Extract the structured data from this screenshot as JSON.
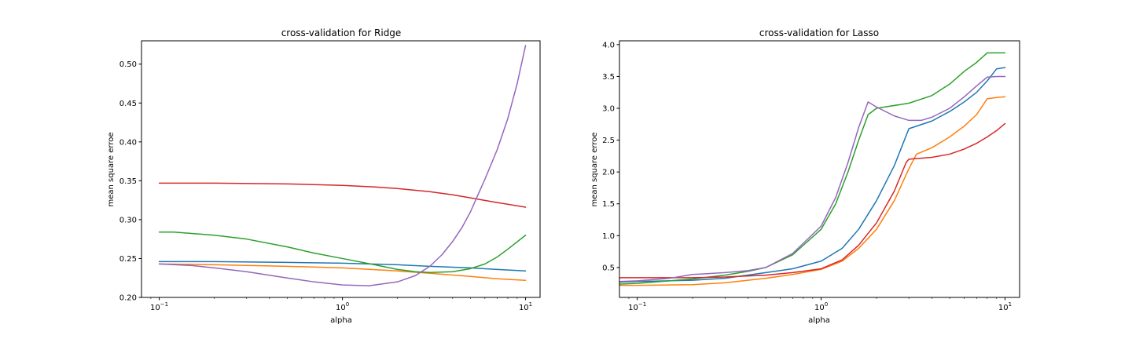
{
  "chart_data": [
    {
      "type": "line",
      "title": "cross-validation for Ridge",
      "xlabel": "alpha",
      "ylabel": "mean square erroe",
      "xscale": "log",
      "xlim": [
        0.08,
        12
      ],
      "ylim": [
        0.2,
        0.53
      ],
      "xticks": [
        {
          "value": 0.1,
          "base": "10",
          "exp": "−1"
        },
        {
          "value": 1,
          "base": "10",
          "exp": "0"
        },
        {
          "value": 10,
          "base": "10",
          "exp": "1"
        }
      ],
      "yticks": [
        {
          "value": 0.2,
          "label": "0.20"
        },
        {
          "value": 0.25,
          "label": "0.25"
        },
        {
          "value": 0.3,
          "label": "0.30"
        },
        {
          "value": 0.35,
          "label": "0.35"
        },
        {
          "value": 0.4,
          "label": "0.40"
        },
        {
          "value": 0.45,
          "label": "0.45"
        },
        {
          "value": 0.5,
          "label": "0.50"
        }
      ],
      "grid": false,
      "series": [
        {
          "color": "#1f77b4",
          "x": [
            0.1,
            0.2,
            0.5,
            1,
            2,
            3,
            5,
            7,
            10
          ],
          "y": [
            0.246,
            0.246,
            0.245,
            0.244,
            0.242,
            0.24,
            0.238,
            0.236,
            0.234
          ]
        },
        {
          "color": "#ff7f0e",
          "x": [
            0.1,
            0.2,
            0.5,
            1,
            2,
            3,
            5,
            7,
            10
          ],
          "y": [
            0.243,
            0.242,
            0.24,
            0.238,
            0.234,
            0.231,
            0.227,
            0.224,
            0.222
          ]
        },
        {
          "color": "#2ca02c",
          "x": [
            0.1,
            0.12,
            0.2,
            0.3,
            0.5,
            0.7,
            1,
            1.5,
            2,
            2.5,
            3,
            4,
            5,
            6,
            7,
            8,
            10
          ],
          "y": [
            0.284,
            0.284,
            0.28,
            0.275,
            0.265,
            0.257,
            0.25,
            0.242,
            0.236,
            0.233,
            0.232,
            0.233,
            0.237,
            0.243,
            0.252,
            0.262,
            0.28
          ]
        },
        {
          "color": "#d62728",
          "x": [
            0.1,
            0.2,
            0.5,
            1,
            1.5,
            2,
            3,
            4,
            5,
            7,
            10
          ],
          "y": [
            0.347,
            0.347,
            0.346,
            0.344,
            0.342,
            0.34,
            0.336,
            0.332,
            0.328,
            0.322,
            0.316
          ]
        },
        {
          "color": "#9467bd",
          "x": [
            0.1,
            0.15,
            0.2,
            0.3,
            0.5,
            0.7,
            1,
            1.4,
            2,
            2.5,
            3,
            3.5,
            4,
            4.5,
            5,
            5.5,
            6,
            7,
            8,
            9,
            10
          ],
          "y": [
            0.243,
            0.241,
            0.238,
            0.233,
            0.225,
            0.22,
            0.216,
            0.215,
            0.22,
            0.228,
            0.24,
            0.255,
            0.272,
            0.29,
            0.31,
            0.332,
            0.352,
            0.39,
            0.43,
            0.475,
            0.524
          ]
        }
      ]
    },
    {
      "type": "line",
      "title": "cross-validation for Lasso",
      "xlabel": "alpha",
      "ylabel": "mean square erroe",
      "xscale": "log",
      "xlim": [
        0.08,
        12
      ],
      "ylim": [
        0.03,
        4.06
      ],
      "xticks": [
        {
          "value": 0.1,
          "base": "10",
          "exp": "−1"
        },
        {
          "value": 1,
          "base": "10",
          "exp": "0"
        },
        {
          "value": 10,
          "base": "10",
          "exp": "1"
        }
      ],
      "yticks": [
        {
          "value": 0.5,
          "label": "0.5"
        },
        {
          "value": 1.0,
          "label": "1.0"
        },
        {
          "value": 1.5,
          "label": "1.5"
        },
        {
          "value": 2.0,
          "label": "2.0"
        },
        {
          "value": 2.5,
          "label": "2.5"
        },
        {
          "value": 3.0,
          "label": "3.0"
        },
        {
          "value": 3.5,
          "label": "3.5"
        },
        {
          "value": 4.0,
          "label": "4.0"
        }
      ],
      "grid": false,
      "series": [
        {
          "color": "#1f77b4",
          "x": [
            0.08,
            0.1,
            0.2,
            0.3,
            0.5,
            0.7,
            1,
            1.3,
            1.6,
            2,
            2.5,
            3,
            4,
            5,
            6,
            7,
            8,
            9,
            10
          ],
          "y": [
            0.27,
            0.28,
            0.3,
            0.33,
            0.42,
            0.48,
            0.6,
            0.8,
            1.1,
            1.55,
            2.1,
            2.68,
            2.8,
            2.95,
            3.1,
            3.25,
            3.43,
            3.62,
            3.64
          ]
        },
        {
          "color": "#ff7f0e",
          "x": [
            0.08,
            0.1,
            0.2,
            0.3,
            0.5,
            0.7,
            1,
            1.3,
            1.6,
            2,
            2.5,
            3,
            3.3,
            4,
            5,
            6,
            7,
            8,
            9,
            10
          ],
          "y": [
            0.22,
            0.22,
            0.23,
            0.26,
            0.33,
            0.39,
            0.47,
            0.6,
            0.8,
            1.1,
            1.55,
            2.05,
            2.28,
            2.38,
            2.55,
            2.72,
            2.9,
            3.15,
            3.17,
            3.18
          ]
        },
        {
          "color": "#2ca02c",
          "x": [
            0.08,
            0.1,
            0.2,
            0.3,
            0.4,
            0.5,
            0.7,
            1,
            1.2,
            1.4,
            1.6,
            1.8,
            2,
            3,
            4,
            5,
            6,
            7,
            8,
            9,
            10
          ],
          "y": [
            0.24,
            0.25,
            0.32,
            0.38,
            0.44,
            0.5,
            0.7,
            1.1,
            1.5,
            2.0,
            2.5,
            2.9,
            3.0,
            3.08,
            3.2,
            3.38,
            3.58,
            3.72,
            3.87,
            3.87,
            3.87
          ]
        },
        {
          "color": "#d62728",
          "x": [
            0.08,
            0.1,
            0.2,
            0.3,
            0.5,
            0.7,
            1,
            1.3,
            1.6,
            2,
            2.5,
            2.9,
            3,
            4,
            5,
            6,
            7,
            8,
            9,
            10
          ],
          "y": [
            0.34,
            0.34,
            0.34,
            0.35,
            0.38,
            0.42,
            0.48,
            0.62,
            0.85,
            1.2,
            1.7,
            2.15,
            2.2,
            2.23,
            2.28,
            2.36,
            2.45,
            2.55,
            2.65,
            2.76
          ]
        },
        {
          "color": "#9467bd",
          "x": [
            0.08,
            0.1,
            0.15,
            0.2,
            0.3,
            0.4,
            0.5,
            0.7,
            1,
            1.2,
            1.4,
            1.6,
            1.8,
            2,
            2.5,
            3,
            3.5,
            4,
            5,
            6,
            7,
            8,
            9,
            10
          ],
          "y": [
            0.28,
            0.29,
            0.33,
            0.39,
            0.42,
            0.45,
            0.5,
            0.72,
            1.15,
            1.6,
            2.15,
            2.7,
            3.1,
            3.02,
            2.88,
            2.81,
            2.81,
            2.86,
            3.0,
            3.18,
            3.35,
            3.49,
            3.5,
            3.5
          ]
        }
      ]
    }
  ]
}
